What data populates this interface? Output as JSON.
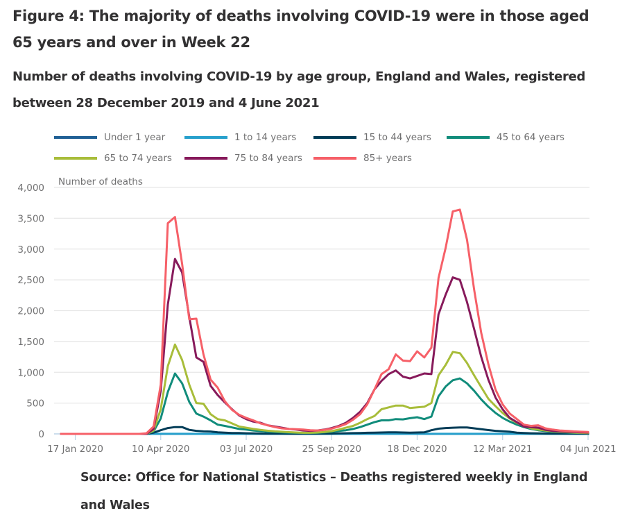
{
  "header": {
    "title": "Figure 4: The majority of deaths involving COVID-19 were in those aged 65 years and over in Week 22",
    "subtitle": "Number of deaths involving COVID-19 by age group, England and Wales, registered between 28 December 2019 and 4 June 2021"
  },
  "footer": {
    "source": "Source: Office for National Statistics – Deaths registered weekly in England and Wales"
  },
  "chart_data": {
    "type": "line",
    "title": "Number of deaths involving COVID-19 by age group, England and Wales, registered between 28 December 2019 and 4 June 2021",
    "xlabel": "",
    "ylabel": "Number of deaths",
    "ylim": [
      0,
      4000
    ],
    "yticks": [
      0,
      500,
      1000,
      1500,
      2000,
      2500,
      3000,
      3500,
      4000
    ],
    "ytick_labels": [
      "0",
      "500",
      "1,000",
      "1,500",
      "2,000",
      "2,500",
      "3,000",
      "3,500",
      "4,000"
    ],
    "xtick_indices": [
      2,
      14,
      26,
      38,
      50,
      62,
      74
    ],
    "xtick_labels": [
      "17 Jan 2020",
      "10 Apr 2020",
      "03 Jul 2020",
      "25 Sep 2020",
      "18 Dec 2020",
      "12 Mar 2021",
      "04 Jun 2021"
    ],
    "x_start": "03 Jan 2020",
    "x_end": "04 Jun 2021",
    "x_interval": "weekly",
    "grid": true,
    "legend_position": "top",
    "series": [
      {
        "name": "Under 1 year",
        "color": "#206095",
        "values": [
          0,
          0,
          0,
          0,
          0,
          0,
          0,
          0,
          0,
          0,
          0,
          0,
          0,
          0,
          0,
          0,
          0,
          0,
          0,
          0,
          0,
          0,
          0,
          0,
          0,
          0,
          0,
          0,
          0,
          0,
          0,
          0,
          0,
          0,
          0,
          0,
          0,
          0,
          0,
          0,
          0,
          0,
          0,
          0,
          0,
          0,
          0,
          0,
          0,
          0,
          0,
          0,
          0,
          0,
          0,
          0,
          0,
          0,
          0,
          0,
          0,
          0,
          0,
          0,
          0,
          0,
          0,
          0,
          0,
          0,
          0,
          0,
          0,
          0,
          0
        ]
      },
      {
        "name": "1 to 14 years",
        "color": "#27a0cc",
        "values": [
          0,
          0,
          0,
          0,
          0,
          0,
          0,
          0,
          0,
          0,
          0,
          0,
          0,
          1,
          1,
          1,
          1,
          1,
          1,
          0,
          0,
          0,
          0,
          0,
          0,
          0,
          0,
          0,
          0,
          0,
          0,
          0,
          0,
          0,
          0,
          0,
          0,
          0,
          0,
          0,
          0,
          0,
          1,
          1,
          1,
          1,
          1,
          1,
          1,
          1,
          1,
          1,
          1,
          1,
          1,
          1,
          1,
          1,
          1,
          1,
          1,
          1,
          1,
          0,
          0,
          0,
          0,
          0,
          0,
          0,
          0,
          0,
          0,
          0,
          0
        ]
      },
      {
        "name": "15 to 44 years",
        "color": "#003c57",
        "values": [
          0,
          0,
          0,
          0,
          0,
          0,
          0,
          0,
          0,
          0,
          0,
          0,
          0,
          20,
          60,
          95,
          110,
          110,
          65,
          50,
          40,
          38,
          25,
          20,
          15,
          14,
          10,
          8,
          6,
          5,
          4,
          4,
          3,
          3,
          3,
          3,
          4,
          5,
          6,
          8,
          10,
          12,
          15,
          18,
          20,
          22,
          25,
          25,
          22,
          20,
          22,
          25,
          60,
          85,
          95,
          100,
          105,
          105,
          90,
          75,
          62,
          50,
          42,
          35,
          20,
          15,
          10,
          8,
          6,
          5,
          5,
          4,
          4,
          3,
          3
        ]
      },
      {
        "name": "45 to 64 years",
        "color": "#118c7b",
        "values": [
          0,
          0,
          0,
          0,
          0,
          0,
          0,
          0,
          0,
          0,
          0,
          0,
          0,
          40,
          250,
          680,
          980,
          820,
          520,
          330,
          280,
          220,
          150,
          130,
          105,
          80,
          70,
          55,
          45,
          38,
          30,
          25,
          20,
          18,
          15,
          15,
          18,
          25,
          35,
          48,
          60,
          80,
          110,
          150,
          190,
          220,
          220,
          240,
          235,
          255,
          270,
          240,
          280,
          610,
          770,
          870,
          900,
          820,
          700,
          560,
          440,
          340,
          260,
          200,
          150,
          110,
          80,
          60,
          45,
          35,
          28,
          22,
          18,
          15,
          12
        ]
      },
      {
        "name": "65 to 74 years",
        "color": "#a8bd3a",
        "values": [
          0,
          0,
          0,
          0,
          0,
          0,
          0,
          0,
          0,
          0,
          0,
          0,
          0,
          55,
          400,
          1100,
          1450,
          1200,
          800,
          500,
          490,
          320,
          240,
          220,
          170,
          120,
          100,
          80,
          65,
          52,
          42,
          35,
          28,
          22,
          18,
          18,
          22,
          30,
          45,
          70,
          100,
          130,
          180,
          240,
          290,
          400,
          430,
          460,
          460,
          420,
          430,
          440,
          500,
          950,
          1120,
          1330,
          1310,
          1150,
          950,
          760,
          570,
          450,
          340,
          250,
          180,
          130,
          90,
          70,
          55,
          42,
          34,
          28,
          22,
          18,
          15
        ]
      },
      {
        "name": "75 to 84 years",
        "color": "#871a5b",
        "values": [
          0,
          0,
          0,
          0,
          0,
          0,
          0,
          0,
          0,
          0,
          0,
          0,
          0,
          80,
          700,
          2100,
          2840,
          2620,
          1900,
          1240,
          1170,
          780,
          630,
          510,
          400,
          300,
          240,
          200,
          180,
          140,
          120,
          100,
          80,
          70,
          55,
          50,
          55,
          70,
          95,
          130,
          180,
          260,
          360,
          500,
          720,
          860,
          970,
          1030,
          930,
          900,
          940,
          980,
          970,
          1940,
          2260,
          2540,
          2500,
          2140,
          1700,
          1250,
          880,
          590,
          400,
          260,
          190,
          120,
          110,
          100,
          65,
          50,
          40,
          35,
          30,
          25,
          22
        ]
      },
      {
        "name": "85+ years",
        "color": "#f66068",
        "values": [
          0,
          0,
          0,
          0,
          0,
          0,
          0,
          0,
          0,
          0,
          0,
          0,
          10,
          120,
          800,
          3420,
          3520,
          2760,
          1860,
          1870,
          1290,
          880,
          750,
          530,
          390,
          310,
          260,
          220,
          170,
          140,
          110,
          90,
          80,
          75,
          70,
          60,
          55,
          65,
          85,
          120,
          160,
          230,
          320,
          480,
          720,
          970,
          1050,
          1290,
          1190,
          1180,
          1340,
          1240,
          1400,
          2530,
          3020,
          3610,
          3640,
          3150,
          2340,
          1640,
          1130,
          720,
          480,
          330,
          240,
          150,
          130,
          140,
          90,
          70,
          55,
          50,
          40,
          35,
          30
        ]
      }
    ]
  }
}
